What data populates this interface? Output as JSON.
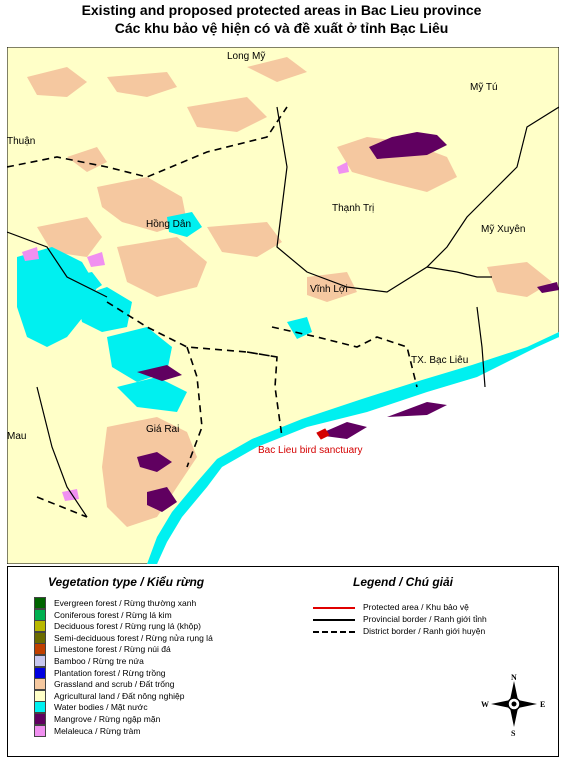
{
  "title": {
    "line1": "Existing and proposed protected areas in Bac Lieu province",
    "line2": "Các khu bảo vệ hiện có và đề xuất ở tỉnh Bạc Liêu"
  },
  "map": {
    "places": [
      "Long Mỹ",
      "Mỹ Tú",
      "Thuận",
      "Thạnh Trị",
      "Mỹ Xuyên",
      "Hồng Dân",
      "Vĩnh Lợi",
      "TX. Bạc Liêu",
      "Giá Rai",
      "Mau"
    ],
    "protected_area_label": "Bac Lieu bird sanctuary"
  },
  "legend": {
    "vegetation_title": "Vegetation type / Kiểu rừng",
    "vegetation_items": [
      {
        "label": "Evergreen forest / Rừng thường xanh",
        "color": "#006400"
      },
      {
        "label": "Coniferous forest / Rừng lá kim",
        "color": "#00b050"
      },
      {
        "label": "Deciduous forest / Rừng rụng lá (khộp)",
        "color": "#b8b800"
      },
      {
        "label": "Semi-deciduous forest / Rừng nửa rụng lá",
        "color": "#6b6b00"
      },
      {
        "label": "Limestone forest / Rừng núi đá",
        "color": "#c04000"
      },
      {
        "label": "Bamboo / Rừng tre nứa",
        "color": "#c8c8f0"
      },
      {
        "label": "Plantation forest / Rừng trồng",
        "color": "#0000e0"
      },
      {
        "label": "Grassland and scrub / Đất trống",
        "color": "#f5c8a0"
      },
      {
        "label": "Agricultural land / Đất nông nghiệp",
        "color": "#ffffc8"
      },
      {
        "label": "Water bodies / Mặt nước",
        "color": "#00f0f0"
      },
      {
        "label": "Mangrove / Rừng ngập mặn",
        "color": "#600060"
      },
      {
        "label": "Melaleuca / Rừng tràm",
        "color": "#f090f0"
      }
    ],
    "legend_title": "Legend / Chú giải",
    "line_items": [
      {
        "label": "Protected area / Khu bảo vệ",
        "style": "solid-red"
      },
      {
        "label": "Provincial border / Ranh giới tỉnh",
        "style": "solid-black"
      },
      {
        "label": "District border / Ranh giới huyện",
        "style": "dashed-black"
      }
    ],
    "compass": {
      "n": "N",
      "s": "S",
      "e": "E",
      "w": "W"
    }
  }
}
